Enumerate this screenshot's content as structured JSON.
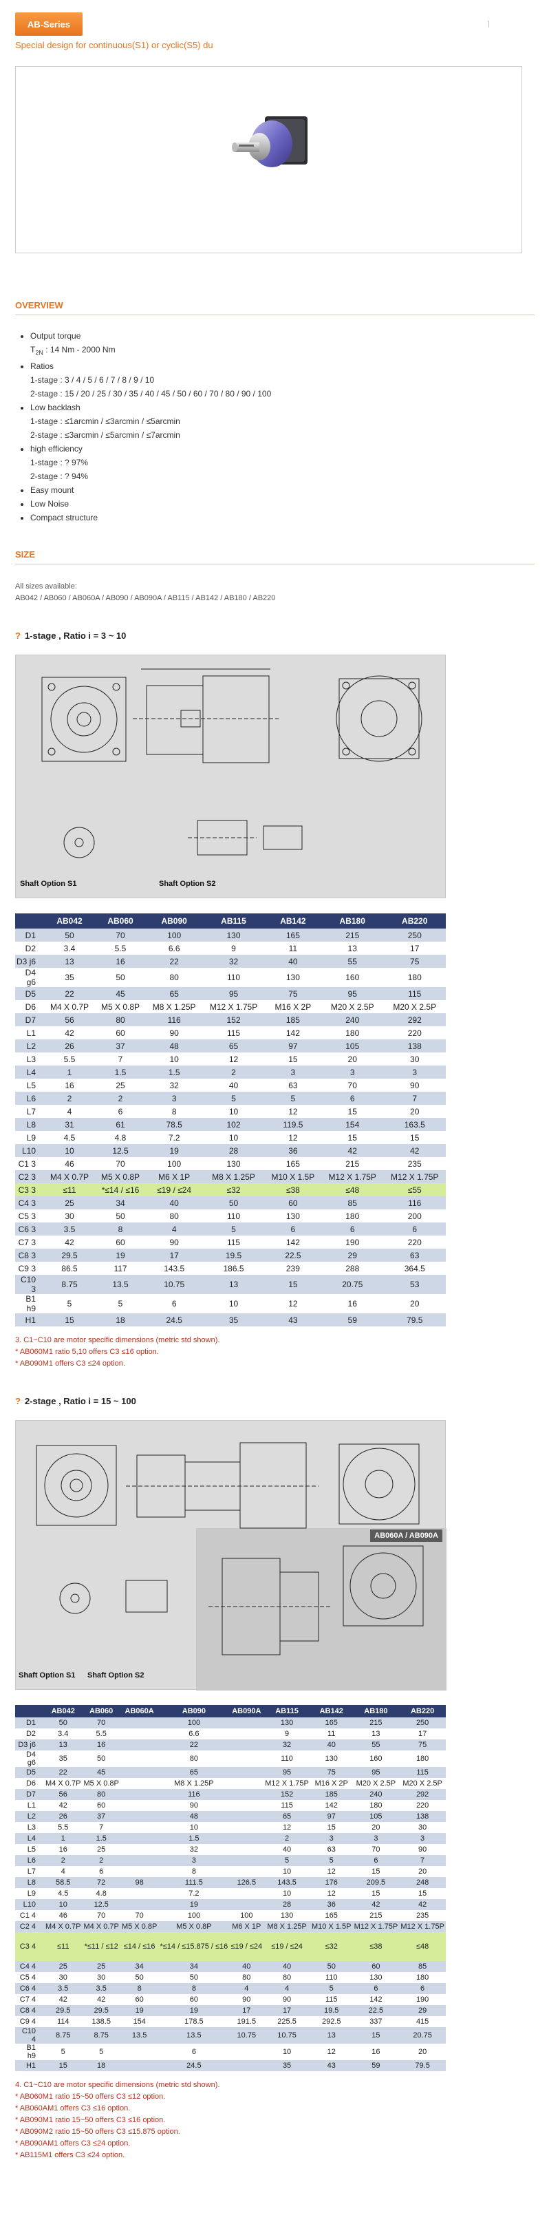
{
  "header": {
    "badge": "AB-Series",
    "subtitle": "Special design for continuous(S1) or cyclic(S5) du"
  },
  "overview": {
    "title": "OVERVIEW",
    "torque_label": "Output torque",
    "torque_symbol": "T",
    "torque_sub": "2N",
    "torque_value": ": 14 Nm - 2000 Nm",
    "ratios_label": "Ratios",
    "ratio_1": "1-stage : 3 / 4 / 5 / 6 / 7 / 8 / 9 / 10",
    "ratio_2": "2-stage : 15 / 20 / 25 / 30 / 35 / 40 / 45 / 50 / 60 / 70 / 80 / 90 / 100",
    "backlash_label": "Low backlash",
    "backlash_1": "1-stage : ≤1arcmin / ≤3arcmin / ≤5arcmin",
    "backlash_2": "2-stage : ≤3arcmin / ≤5arcmin / ≤7arcmin",
    "efficiency_label": "high efficiency",
    "eff_1": "1-stage : ? 97%",
    "eff_2": "2-stage : ? 94%",
    "f1": "Easy mount",
    "f2": "Low Noise",
    "f3": "Compact structure"
  },
  "size": {
    "title": "SIZE",
    "line1": "All sizes available:",
    "line2": "AB042 / AB060 / AB060A / AB090 / AB090A / AB115 / AB142 / AB180 / AB220"
  },
  "stage1": {
    "mark": "?",
    "title": "1-stage , Ratio i = 3 ~ 10",
    "cap_s1": "Shaft Option S1",
    "cap_s2": "Shaft Option S2",
    "headers": [
      "",
      "AB042",
      "AB060",
      "AB090",
      "AB115",
      "AB142",
      "AB180",
      "AB220"
    ],
    "rows": [
      [
        "D1",
        "50",
        "70",
        "100",
        "130",
        "165",
        "215",
        "250"
      ],
      [
        "D2",
        "3.4",
        "5.5",
        "6.6",
        "9",
        "11",
        "13",
        "17"
      ],
      [
        "D3 j6",
        "13",
        "16",
        "22",
        "32",
        "40",
        "55",
        "75"
      ],
      [
        "D4 g6",
        "35",
        "50",
        "80",
        "110",
        "130",
        "160",
        "180"
      ],
      [
        "D5",
        "22",
        "45",
        "65",
        "95",
        "75",
        "95",
        "115"
      ],
      [
        "D6",
        "M4 X 0.7P",
        "M5 X 0.8P",
        "M8 X 1.25P",
        "M12 X 1.75P",
        "M16 X 2P",
        "M20 X 2.5P",
        "M20 X 2.5P"
      ],
      [
        "D7",
        "56",
        "80",
        "116",
        "152",
        "185",
        "240",
        "292"
      ],
      [
        "L1",
        "42",
        "60",
        "90",
        "115",
        "142",
        "180",
        "220"
      ],
      [
        "L2",
        "26",
        "37",
        "48",
        "65",
        "97",
        "105",
        "138"
      ],
      [
        "L3",
        "5.5",
        "7",
        "10",
        "12",
        "15",
        "20",
        "30"
      ],
      [
        "L4",
        "1",
        "1.5",
        "1.5",
        "2",
        "3",
        "3",
        "3"
      ],
      [
        "L5",
        "16",
        "25",
        "32",
        "40",
        "63",
        "70",
        "90"
      ],
      [
        "L6",
        "2",
        "2",
        "3",
        "5",
        "5",
        "6",
        "7"
      ],
      [
        "L7",
        "4",
        "6",
        "8",
        "10",
        "12",
        "15",
        "20"
      ],
      [
        "L8",
        "31",
        "61",
        "78.5",
        "102",
        "119.5",
        "154",
        "163.5"
      ],
      [
        "L9",
        "4.5",
        "4.8",
        "7.2",
        "10",
        "12",
        "15",
        "15"
      ],
      [
        "L10",
        "10",
        "12.5",
        "19",
        "28",
        "36",
        "42",
        "42"
      ],
      [
        "C1 3",
        "46",
        "70",
        "100",
        "130",
        "165",
        "215",
        "235"
      ],
      [
        "C2 3",
        "M4 X 0.7P",
        "M5 X 0.8P",
        "M6 X 1P",
        "M8 X 1.25P",
        "M10 X 1.5P",
        "M12 X 1.75P",
        "M12 X 1.75P"
      ],
      [
        "C3 3",
        "≤11",
        "*≤14 / ≤16",
        "≤19 / ≤24",
        "≤32",
        "≤38",
        "≤48",
        "≤55"
      ],
      [
        "C4 3",
        "25",
        "34",
        "40",
        "50",
        "60",
        "85",
        "116"
      ],
      [
        "C5 3",
        "30",
        "50",
        "80",
        "110",
        "130",
        "180",
        "200"
      ],
      [
        "C6 3",
        "3.5",
        "8",
        "4",
        "5",
        "6",
        "6",
        "6"
      ],
      [
        "C7 3",
        "42",
        "60",
        "90",
        "115",
        "142",
        "190",
        "220"
      ],
      [
        "C8 3",
        "29.5",
        "19",
        "17",
        "19.5",
        "22.5",
        "29",
        "63"
      ],
      [
        "C9 3",
        "86.5",
        "117",
        "143.5",
        "186.5",
        "239",
        "288",
        "364.5"
      ],
      [
        "C10 3",
        "8.75",
        "13.5",
        "10.75",
        "13",
        "15",
        "20.75",
        "53"
      ],
      [
        "B1 h9",
        "5",
        "5",
        "6",
        "10",
        "12",
        "16",
        "20"
      ],
      [
        "H1",
        "15",
        "18",
        "24.5",
        "35",
        "43",
        "59",
        "79.5"
      ]
    ],
    "notes": [
      "3. C1~C10 are motor specific dimensions (metric std shown).",
      "* AB060M1 ratio 5,10 offers C3 ≤16 option.",
      "* AB090M1 offers C3 ≤24 option."
    ]
  },
  "stage2": {
    "mark": "?",
    "title": "2-stage , Ratio i = 15 ~ 100",
    "cap_s1": "Shaft Option S1",
    "cap_s2": "Shaft Option S2",
    "badge": "AB060A / AB090A",
    "headers": [
      "",
      "AB042",
      "AB060",
      "AB060A",
      "AB090",
      "AB090A",
      "AB115",
      "AB142",
      "AB180",
      "AB220"
    ],
    "rows": [
      [
        "D1",
        "50",
        "70",
        "",
        "100",
        "",
        "130",
        "165",
        "215",
        "250"
      ],
      [
        "D2",
        "3.4",
        "5.5",
        "",
        "6.6",
        "",
        "9",
        "11",
        "13",
        "17"
      ],
      [
        "D3 j6",
        "13",
        "16",
        "",
        "22",
        "",
        "32",
        "40",
        "55",
        "75"
      ],
      [
        "D4 g6",
        "35",
        "50",
        "",
        "80",
        "",
        "110",
        "130",
        "160",
        "180"
      ],
      [
        "D5",
        "22",
        "45",
        "",
        "65",
        "",
        "95",
        "75",
        "95",
        "115"
      ],
      [
        "D6",
        "M4 X 0.7P",
        "M5 X 0.8P",
        "",
        "M8 X 1.25P",
        "",
        "M12 X 1.75P",
        "M16 X 2P",
        "M20 X 2.5P",
        "M20 X 2.5P"
      ],
      [
        "D7",
        "56",
        "80",
        "",
        "116",
        "",
        "152",
        "185",
        "240",
        "292"
      ],
      [
        "L1",
        "42",
        "60",
        "",
        "90",
        "",
        "115",
        "142",
        "180",
        "220"
      ],
      [
        "L2",
        "26",
        "37",
        "",
        "48",
        "",
        "65",
        "97",
        "105",
        "138"
      ],
      [
        "L3",
        "5.5",
        "7",
        "",
        "10",
        "",
        "12",
        "15",
        "20",
        "30"
      ],
      [
        "L4",
        "1",
        "1.5",
        "",
        "1.5",
        "",
        "2",
        "3",
        "3",
        "3"
      ],
      [
        "L5",
        "16",
        "25",
        "",
        "32",
        "",
        "40",
        "63",
        "70",
        "90"
      ],
      [
        "L6",
        "2",
        "2",
        "",
        "3",
        "",
        "5",
        "5",
        "6",
        "7"
      ],
      [
        "L7",
        "4",
        "6",
        "",
        "8",
        "",
        "10",
        "12",
        "15",
        "20"
      ],
      [
        "L8",
        "58.5",
        "72",
        "98",
        "111.5",
        "126.5",
        "143.5",
        "176",
        "209.5",
        "248"
      ],
      [
        "L9",
        "4.5",
        "4.8",
        "",
        "7.2",
        "",
        "10",
        "12",
        "15",
        "15"
      ],
      [
        "L10",
        "10",
        "12.5",
        "",
        "19",
        "",
        "28",
        "36",
        "42",
        "42"
      ],
      [
        "C1 4",
        "46",
        "70",
        "70",
        "100",
        "100",
        "130",
        "165",
        "215",
        "235"
      ],
      [
        "C2 4",
        "M4 X 0.7P",
        "M4 X 0.7P",
        "M5 X 0.8P",
        "M5 X 0.8P",
        "M6 X 1P",
        "M8 X 1.25P",
        "M10 X 1.5P",
        "M12 X 1.75P",
        "M12 X 1.75P"
      ],
      [
        "C3 4",
        "≤11",
        "*≤11 / ≤12",
        "≤14 / ≤16",
        "*≤14 / ≤15.875 / ≤16",
        "≤19 / ≤24",
        "≤19 / ≤24",
        "≤32",
        "≤38",
        "≤48"
      ],
      [
        "C4 4",
        "25",
        "25",
        "34",
        "34",
        "40",
        "40",
        "50",
        "60",
        "85"
      ],
      [
        "C5 4",
        "30",
        "30",
        "50",
        "50",
        "80",
        "80",
        "110",
        "130",
        "180"
      ],
      [
        "C6 4",
        "3.5",
        "3.5",
        "8",
        "8",
        "4",
        "4",
        "5",
        "6",
        "6"
      ],
      [
        "C7 4",
        "42",
        "42",
        "60",
        "60",
        "90",
        "90",
        "115",
        "142",
        "190"
      ],
      [
        "C8 4",
        "29.5",
        "29.5",
        "19",
        "19",
        "17",
        "17",
        "19.5",
        "22.5",
        "29"
      ],
      [
        "C9 4",
        "114",
        "138.5",
        "154",
        "178.5",
        "191.5",
        "225.5",
        "292.5",
        "337",
        "415"
      ],
      [
        "C10 4",
        "8.75",
        "8.75",
        "13.5",
        "13.5",
        "10.75",
        "10.75",
        "13",
        "15",
        "20.75"
      ],
      [
        "B1 h9",
        "5",
        "5",
        "",
        "6",
        "",
        "10",
        "12",
        "16",
        "20"
      ],
      [
        "H1",
        "15",
        "18",
        "",
        "24.5",
        "",
        "35",
        "43",
        "59",
        "79.5"
      ]
    ],
    "notes": [
      "4. C1~C10 are motor specific dimensions (metric std shown).",
      "* AB060M1 ratio 15~50 offers C3 ≤12 option.",
      "* AB060AM1 offers C3 ≤16 option.",
      "* AB090M1 ratio 15~50 offers C3 ≤16 option.",
      "* AB090M2 ratio 15~50 offers C3 ≤15.875 option.",
      "* AB090AM1 offers C3 ≤24 option.",
      "* AB115M1 offers C3 ≤24 option."
    ]
  },
  "colors": {
    "accent": "#e8741d",
    "header_bg": "#2d3e6e",
    "row_alt": "#cdd7e6",
    "highlight": "#d6ec9b",
    "note": "#b9321c"
  }
}
